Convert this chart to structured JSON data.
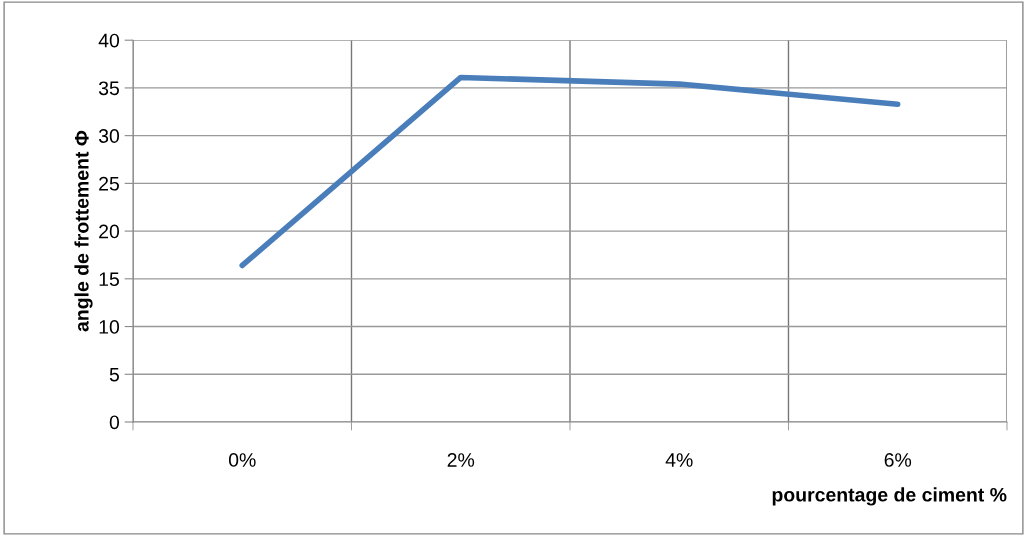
{
  "chart_data": {
    "type": "line",
    "xlabel": "pourcentage de ciment %",
    "ylabel": "angle de frottement Φ",
    "categories": [
      "0%",
      "2%",
      "4%",
      "6%"
    ],
    "series": [
      {
        "color": "#4a7ebb",
        "values": [
          16.4,
          36.1,
          35.4,
          33.3
        ]
      }
    ],
    "ylim": [
      0,
      40
    ],
    "yticks": [
      0,
      5,
      10,
      15,
      20,
      25,
      30,
      35,
      40
    ],
    "grid": true,
    "marker": "none",
    "line_style": "solid"
  }
}
